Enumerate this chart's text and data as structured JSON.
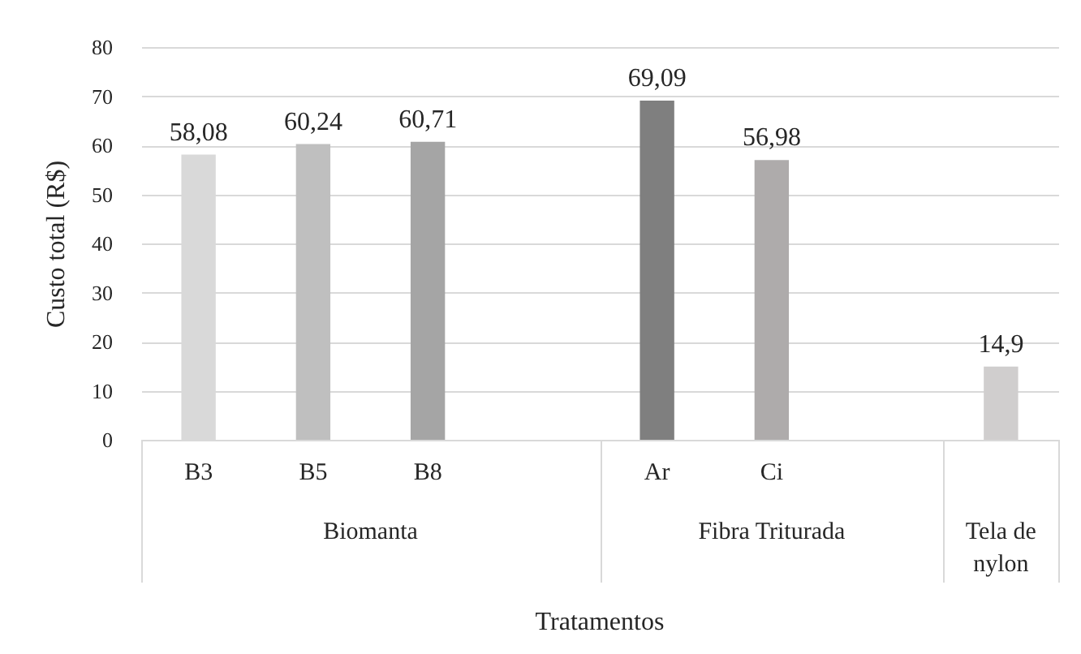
{
  "chart_data": {
    "type": "bar",
    "ylabel": "Custo total (R$)",
    "xlabel": "Tratamentos",
    "categories": [
      "B3",
      "B5",
      "B8",
      null,
      "Ar",
      "Ci",
      null,
      null
    ],
    "values": [
      58.08,
      60.24,
      60.71,
      null,
      69.09,
      56.98,
      null,
      14.9
    ],
    "colors": [
      "#d9d9d9",
      "#bfbfbf",
      "#a5a5a5",
      null,
      "#7f7f7f",
      "#aeabab",
      null,
      "#d0cece"
    ],
    "value_labels": [
      "58,08",
      "60,24",
      "60,71",
      null,
      "69,09",
      "56,98",
      null,
      "14,9"
    ],
    "ylim": [
      0,
      80
    ],
    "yticks": [
      0,
      10,
      20,
      30,
      40,
      50,
      60,
      70,
      80
    ],
    "grid": "y",
    "annotations": [
      "Biomanta",
      "Fibra Triturada",
      "Tela de nylon"
    ]
  }
}
